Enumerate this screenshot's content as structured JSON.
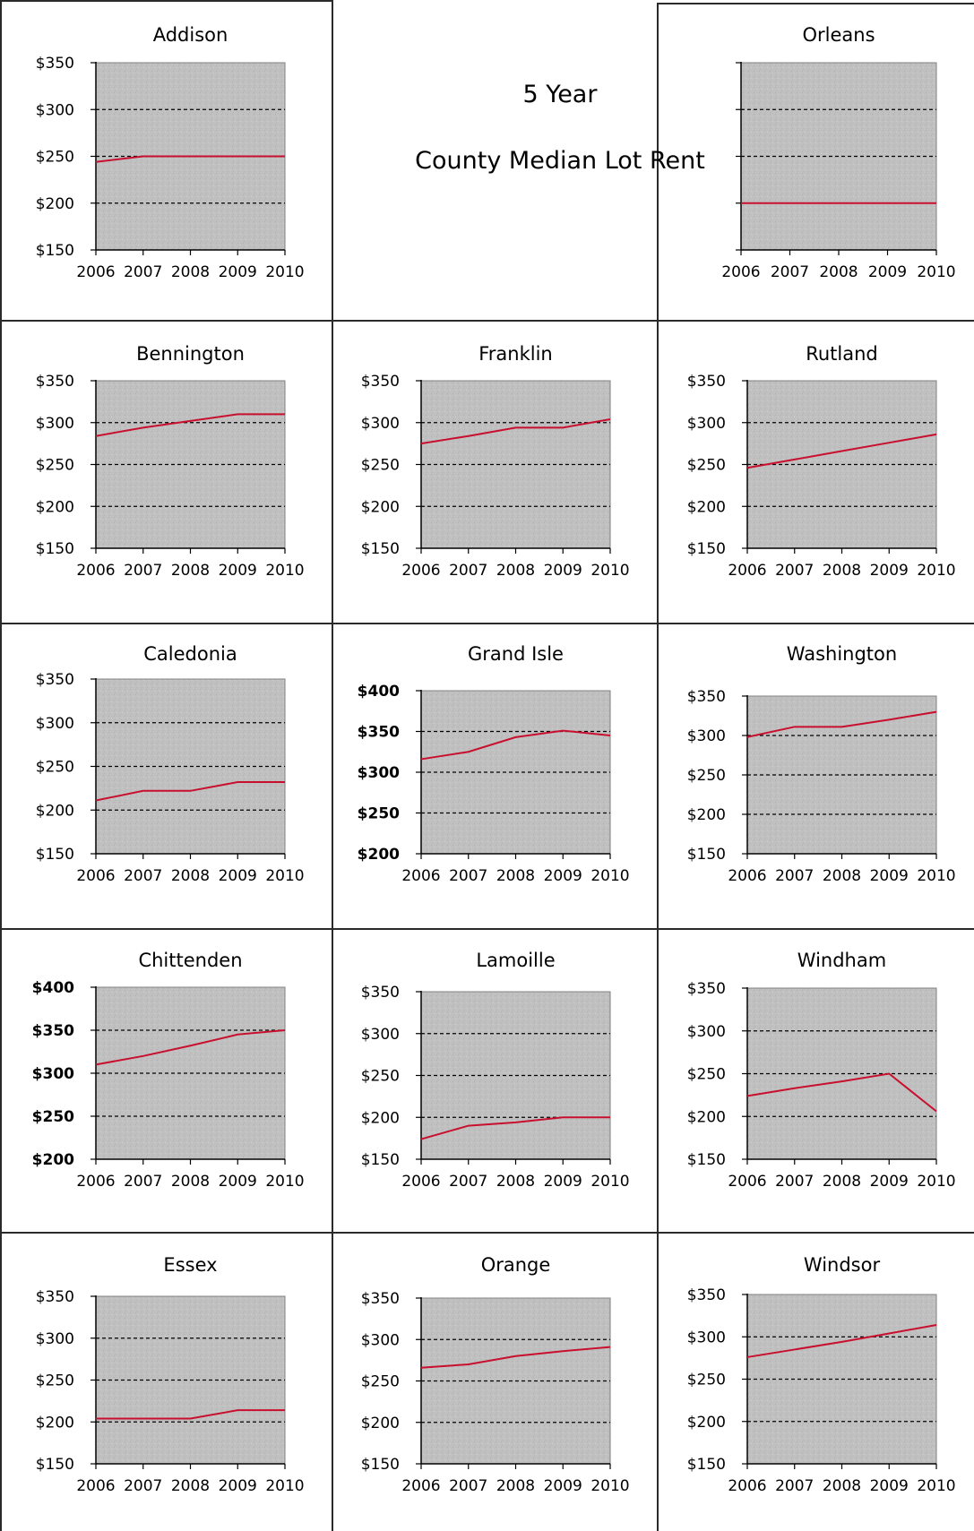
{
  "heading": {
    "line1": "5 Year",
    "line2": "County Median Lot Rent"
  },
  "colors": {
    "plot_bg": "#c0c0c0",
    "line": "#c8102e",
    "grid": "#000000"
  },
  "chart_data": [
    {
      "type": "line",
      "title": "Addison",
      "x": [
        "2006",
        "2007",
        "2008",
        "2009",
        "2010"
      ],
      "values": [
        244,
        250,
        250,
        250,
        250
      ],
      "ylim": [
        150,
        350
      ],
      "yticks": [
        "$150",
        "$200",
        "$250",
        "$300",
        "$350"
      ],
      "tickvals": [
        150,
        200,
        250,
        300,
        350
      ],
      "bold_ticks": false,
      "grid": true
    },
    {
      "type": "line",
      "title": "Orleans",
      "x": [
        "2006",
        "2007",
        "2008",
        "2009",
        "2010"
      ],
      "values": [
        200,
        200,
        200,
        200,
        200
      ],
      "ylim": [
        150,
        350
      ],
      "yticks": [
        "",
        "",
        "",
        "",
        ""
      ],
      "tickvals": [
        150,
        200,
        250,
        300,
        350
      ],
      "bold_ticks": false,
      "grid": true
    },
    {
      "type": "line",
      "title": "Bennington",
      "x": [
        "2006",
        "2007",
        "2008",
        "2009",
        "2010"
      ],
      "values": [
        284,
        294,
        302,
        310,
        310
      ],
      "ylim": [
        150,
        350
      ],
      "yticks": [
        "$150",
        "$200",
        "$250",
        "$300",
        "$350"
      ],
      "tickvals": [
        150,
        200,
        250,
        300,
        350
      ],
      "bold_ticks": false,
      "grid": true
    },
    {
      "type": "line",
      "title": "Franklin",
      "x": [
        "2006",
        "2007",
        "2008",
        "2009",
        "2010"
      ],
      "values": [
        275,
        284,
        294,
        294,
        304
      ],
      "ylim": [
        150,
        350
      ],
      "yticks": [
        "$150",
        "$200",
        "$250",
        "$300",
        "$350"
      ],
      "tickvals": [
        150,
        200,
        250,
        300,
        350
      ],
      "bold_ticks": false,
      "grid": true
    },
    {
      "type": "line",
      "title": "Rutland",
      "x": [
        "2006",
        "2007",
        "2008",
        "2009",
        "2010"
      ],
      "values": [
        246,
        256,
        266,
        276,
        286
      ],
      "ylim": [
        150,
        350
      ],
      "yticks": [
        "$150",
        "$200",
        "$250",
        "$300",
        "$350"
      ],
      "tickvals": [
        150,
        200,
        250,
        300,
        350
      ],
      "bold_ticks": false,
      "grid": true
    },
    {
      "type": "line",
      "title": "Caledonia",
      "x": [
        "2006",
        "2007",
        "2008",
        "2009",
        "2010"
      ],
      "values": [
        211,
        222,
        222,
        232,
        232
      ],
      "ylim": [
        150,
        350
      ],
      "yticks": [
        "$150",
        "$200",
        "$250",
        "$300",
        "$350"
      ],
      "tickvals": [
        150,
        200,
        250,
        300,
        350
      ],
      "bold_ticks": false,
      "grid": true
    },
    {
      "type": "line",
      "title": "Grand Isle",
      "x": [
        "2006",
        "2007",
        "2008",
        "2009",
        "2010"
      ],
      "values": [
        316,
        325,
        343,
        351,
        345
      ],
      "ylim": [
        200,
        400
      ],
      "yticks": [
        "$200",
        "$250",
        "$300",
        "$350",
        "$400"
      ],
      "tickvals": [
        200,
        250,
        300,
        350,
        400
      ],
      "bold_ticks": true,
      "grid": true
    },
    {
      "type": "line",
      "title": "Washington",
      "x": [
        "2006",
        "2007",
        "2008",
        "2009",
        "2010"
      ],
      "values": [
        298,
        311,
        311,
        320,
        330
      ],
      "ylim": [
        150,
        350
      ],
      "yticks": [
        "$150",
        "$200",
        "$250",
        "$300",
        "$350"
      ],
      "tickvals": [
        150,
        200,
        250,
        300,
        350
      ],
      "bold_ticks": false,
      "grid": true
    },
    {
      "type": "line",
      "title": "Chittenden",
      "x": [
        "2006",
        "2007",
        "2008",
        "2009",
        "2010"
      ],
      "values": [
        310,
        320,
        332,
        345,
        350
      ],
      "ylim": [
        200,
        400
      ],
      "yticks": [
        "$200",
        "$250",
        "$300",
        "$350",
        "$400"
      ],
      "tickvals": [
        200,
        250,
        300,
        350,
        400
      ],
      "bold_ticks": true,
      "grid": true
    },
    {
      "type": "line",
      "title": "Lamoille",
      "x": [
        "2006",
        "2007",
        "2008",
        "2009",
        "2010"
      ],
      "values": [
        174,
        190,
        194,
        200,
        200
      ],
      "ylim": [
        150,
        350
      ],
      "yticks": [
        "$150",
        "$200",
        "$250",
        "$300",
        "$350"
      ],
      "tickvals": [
        150,
        200,
        250,
        300,
        350
      ],
      "bold_ticks": false,
      "grid": true
    },
    {
      "type": "line",
      "title": "Windham",
      "x": [
        "2006",
        "2007",
        "2008",
        "2009",
        "2010"
      ],
      "values": [
        224,
        233,
        241,
        250,
        206
      ],
      "ylim": [
        150,
        350
      ],
      "yticks": [
        "$150",
        "$200",
        "$250",
        "$300",
        "$350"
      ],
      "tickvals": [
        150,
        200,
        250,
        300,
        350
      ],
      "bold_ticks": false,
      "grid": true
    },
    {
      "type": "line",
      "title": "Essex",
      "x": [
        "2006",
        "2007",
        "2008",
        "2009",
        "2010"
      ],
      "values": [
        204,
        204,
        204,
        214,
        214
      ],
      "ylim": [
        150,
        350
      ],
      "yticks": [
        "$150",
        "$200",
        "$250",
        "$300",
        "$350"
      ],
      "tickvals": [
        150,
        200,
        250,
        300,
        350
      ],
      "bold_ticks": false,
      "grid": true
    },
    {
      "type": "line",
      "title": "Orange",
      "x": [
        "2006",
        "2007",
        "2008",
        "2009",
        "2010"
      ],
      "values": [
        266,
        270,
        280,
        286,
        291
      ],
      "ylim": [
        150,
        350
      ],
      "yticks": [
        "$150",
        "$200",
        "$250",
        "$300",
        "$350"
      ],
      "tickvals": [
        150,
        200,
        250,
        300,
        350
      ],
      "bold_ticks": false,
      "grid": true
    },
    {
      "type": "line",
      "title": "Windsor",
      "x": [
        "2006",
        "2007",
        "2008",
        "2009",
        "2010"
      ],
      "values": [
        276,
        285,
        294,
        304,
        314
      ],
      "ylim": [
        150,
        350
      ],
      "yticks": [
        "$150",
        "$200",
        "$250",
        "$300",
        "$350"
      ],
      "tickvals": [
        150,
        200,
        250,
        300,
        350
      ],
      "bold_ticks": false,
      "grid": true
    }
  ]
}
